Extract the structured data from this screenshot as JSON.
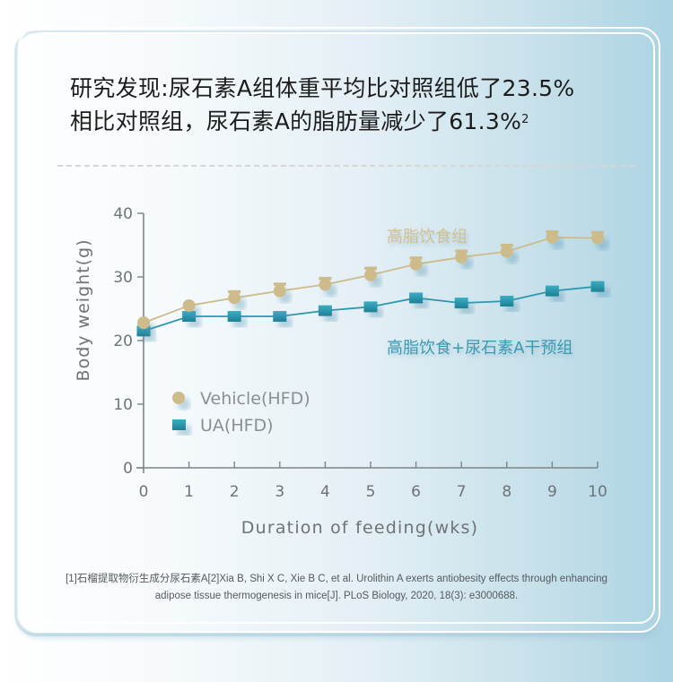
{
  "headline": {
    "line1": "研究发现:尿石素A组体重平均比对照组低了23.5%",
    "line2": "相比对照组，尿石素A的脂肪量减少了61.3%",
    "line2_sup": "2"
  },
  "footnote": {
    "line1": "[1]石榴提取物衍生成分尿石素A[2]Xia B, Shi X C, Xie B C, et al. Urolithin A exerts antiobesity effects through enhancing",
    "line2": "adipose tissue thermogenesis in mice[J]. PLoS Biology, 2020, 18(3): e3000688."
  },
  "colors": {
    "vehicle": "#cdbb8c",
    "ua": "#2e97ad",
    "axis": "#7d8487",
    "text": "#6e7376",
    "label_vehicle": "#d2bf90",
    "label_ua": "#3a9ab0"
  },
  "chart_data": {
    "type": "line",
    "title": "",
    "xlabel": "Duration of feeding(wks)",
    "ylabel": "Body weight(g)",
    "x": [
      0,
      1,
      2,
      3,
      4,
      5,
      6,
      7,
      8,
      9,
      10
    ],
    "xticks": [
      "0",
      "1",
      "2",
      "3",
      "4",
      "5",
      "6",
      "7",
      "8",
      "9",
      "10"
    ],
    "yticks": [
      "0",
      "10",
      "20",
      "30",
      "40"
    ],
    "xlim": [
      0,
      10
    ],
    "ylim": [
      0,
      40
    ],
    "grid": false,
    "legend": "lower-left",
    "series": [
      {
        "name": "Vehicle(HFD)",
        "marker": "circle",
        "values": [
          22.8,
          25.5,
          26.7,
          27.8,
          28.8,
          30.3,
          32.0,
          33.1,
          34.0,
          36.2,
          36.1
        ],
        "error": [
          0,
          0,
          1.0,
          1.1,
          1.0,
          1.1,
          1.0,
          1.0,
          1.0,
          0.9,
          0.9
        ]
      },
      {
        "name": "UA(HFD)",
        "marker": "square",
        "values": [
          21.5,
          23.8,
          23.8,
          23.8,
          24.7,
          25.3,
          26.7,
          25.9,
          26.2,
          27.8,
          28.5
        ],
        "error": [
          0,
          0,
          0,
          0,
          0,
          0,
          0,
          0,
          0,
          0,
          0
        ]
      }
    ],
    "annotations": [
      {
        "text": "高脂饮食组",
        "series": "Vehicle(HFD)"
      },
      {
        "text": "高脂饮食+尿石素A干预组",
        "series": "UA(HFD)"
      }
    ]
  }
}
